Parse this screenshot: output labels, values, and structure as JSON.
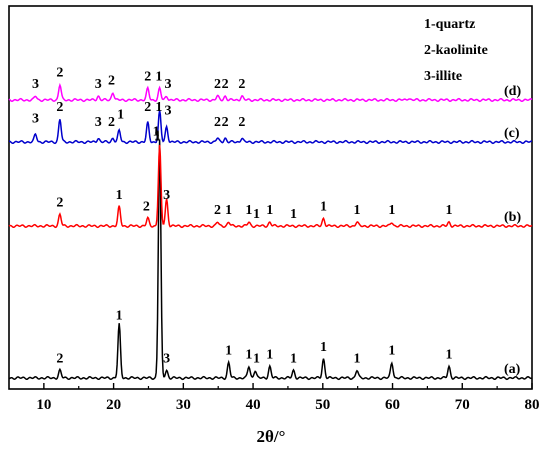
{
  "chart_data": {
    "type": "line",
    "xlabel": "2θ/°",
    "ylabel": "",
    "xlim": [
      5,
      80
    ],
    "x_ticks": [
      "10",
      "20",
      "30",
      "40",
      "50",
      "60",
      "70",
      "80"
    ],
    "y_ticks": [],
    "grid": false,
    "legend_placement": "top-right",
    "legend": [
      "1-quartz",
      "2-kaolinite",
      "3-illite"
    ],
    "colors": {
      "a": "#000000",
      "b": "#ff0000",
      "c": "#0000cc",
      "d": "#ff00ff"
    },
    "series": [
      {
        "name": "(a)",
        "peaks": [
          {
            "x": 12.3,
            "h": 0.02
          },
          {
            "x": 20.8,
            "h": 0.14
          },
          {
            "x": 26.6,
            "h": 0.62
          },
          {
            "x": 27.6,
            "h": 0.02
          },
          {
            "x": 36.5,
            "h": 0.04
          },
          {
            "x": 39.4,
            "h": 0.03
          },
          {
            "x": 40.3,
            "h": 0.02
          },
          {
            "x": 42.4,
            "h": 0.03
          },
          {
            "x": 45.8,
            "h": 0.02
          },
          {
            "x": 50.1,
            "h": 0.05
          },
          {
            "x": 54.9,
            "h": 0.02
          },
          {
            "x": 59.9,
            "h": 0.04
          },
          {
            "x": 68.1,
            "h": 0.03
          }
        ],
        "peak_labels": [
          {
            "x": 12.3,
            "text": "2"
          },
          {
            "x": 20.8,
            "text": "1"
          },
          {
            "x": 26.1,
            "text": "1"
          },
          {
            "x": 27.6,
            "text": "3"
          },
          {
            "x": 36.5,
            "text": "1"
          },
          {
            "x": 39.4,
            "text": "1"
          },
          {
            "x": 40.5,
            "text": "1"
          },
          {
            "x": 42.4,
            "text": "1"
          },
          {
            "x": 45.8,
            "text": "1"
          },
          {
            "x": 50.1,
            "text": "1"
          },
          {
            "x": 54.9,
            "text": "1"
          },
          {
            "x": 59.9,
            "text": "1"
          },
          {
            "x": 68.1,
            "text": "1"
          }
        ]
      },
      {
        "name": "(b)",
        "peaks": [
          {
            "x": 12.3,
            "h": 0.03
          },
          {
            "x": 20.8,
            "h": 0.05
          },
          {
            "x": 24.9,
            "h": 0.02
          },
          {
            "x": 26.6,
            "h": 0.21
          },
          {
            "x": 27.6,
            "h": 0.07
          },
          {
            "x": 34.9,
            "h": 0.01
          },
          {
            "x": 36.5,
            "h": 0.01
          },
          {
            "x": 39.4,
            "h": 0.01
          },
          {
            "x": 42.4,
            "h": 0.01
          },
          {
            "x": 50.1,
            "h": 0.02
          },
          {
            "x": 54.9,
            "h": 0.01
          },
          {
            "x": 59.9,
            "h": 0.01
          },
          {
            "x": 68.1,
            "h": 0.01
          }
        ],
        "peak_labels": [
          {
            "x": 12.3,
            "text": "2"
          },
          {
            "x": 20.8,
            "text": "1"
          },
          {
            "x": 24.7,
            "text": "2"
          },
          {
            "x": 26.3,
            "text": "1"
          },
          {
            "x": 26.3,
            "text": "1",
            "top": true
          },
          {
            "x": 27.6,
            "text": "3"
          },
          {
            "x": 34.9,
            "text": "2"
          },
          {
            "x": 36.5,
            "text": "1"
          },
          {
            "x": 39.4,
            "text": "1"
          },
          {
            "x": 40.5,
            "text": "1"
          },
          {
            "x": 42.4,
            "text": "1"
          },
          {
            "x": 45.8,
            "text": "1"
          },
          {
            "x": 50.1,
            "text": "1"
          },
          {
            "x": 54.9,
            "text": "1"
          },
          {
            "x": 59.9,
            "text": "1"
          },
          {
            "x": 68.1,
            "text": "1"
          }
        ]
      },
      {
        "name": "(c)",
        "peaks": [
          {
            "x": 8.8,
            "h": 0.02
          },
          {
            "x": 12.3,
            "h": 0.06
          },
          {
            "x": 17.8,
            "h": 0.01
          },
          {
            "x": 19.9,
            "h": 0.01
          },
          {
            "x": 20.8,
            "h": 0.03
          },
          {
            "x": 24.9,
            "h": 0.05
          },
          {
            "x": 26.6,
            "h": 0.08
          },
          {
            "x": 27.6,
            "h": 0.04
          },
          {
            "x": 34.9,
            "h": 0.01
          },
          {
            "x": 36.0,
            "h": 0.01
          },
          {
            "x": 38.4,
            "h": 0.01
          }
        ],
        "peak_labels": [
          {
            "x": 8.8,
            "text": "3"
          },
          {
            "x": 12.3,
            "text": "2"
          },
          {
            "x": 17.8,
            "text": "3"
          },
          {
            "x": 19.7,
            "text": "2"
          },
          {
            "x": 21.0,
            "text": "1"
          },
          {
            "x": 24.9,
            "text": "2"
          },
          {
            "x": 26.5,
            "text": "1"
          },
          {
            "x": 27.8,
            "text": "3"
          },
          {
            "x": 34.9,
            "text": "2"
          },
          {
            "x": 36.0,
            "text": "2"
          },
          {
            "x": 38.4,
            "text": "2"
          }
        ]
      },
      {
        "name": "(d)",
        "peaks": [
          {
            "x": 8.8,
            "h": 0.01
          },
          {
            "x": 12.3,
            "h": 0.04
          },
          {
            "x": 17.8,
            "h": 0.01
          },
          {
            "x": 19.9,
            "h": 0.02
          },
          {
            "x": 24.9,
            "h": 0.03
          },
          {
            "x": 26.6,
            "h": 0.03
          },
          {
            "x": 27.6,
            "h": 0.01
          },
          {
            "x": 34.9,
            "h": 0.01
          },
          {
            "x": 36.0,
            "h": 0.01
          },
          {
            "x": 38.4,
            "h": 0.01
          },
          {
            "x": 62.3,
            "h": 0.005
          }
        ],
        "peak_labels": [
          {
            "x": 8.8,
            "text": "3"
          },
          {
            "x": 12.3,
            "text": "2"
          },
          {
            "x": 17.8,
            "text": "3"
          },
          {
            "x": 19.7,
            "text": "2"
          },
          {
            "x": 24.9,
            "text": "2"
          },
          {
            "x": 26.5,
            "text": "1"
          },
          {
            "x": 27.8,
            "text": "3"
          },
          {
            "x": 34.9,
            "text": "2"
          },
          {
            "x": 36.0,
            "text": "2"
          },
          {
            "x": 38.4,
            "text": "2"
          }
        ]
      }
    ]
  }
}
